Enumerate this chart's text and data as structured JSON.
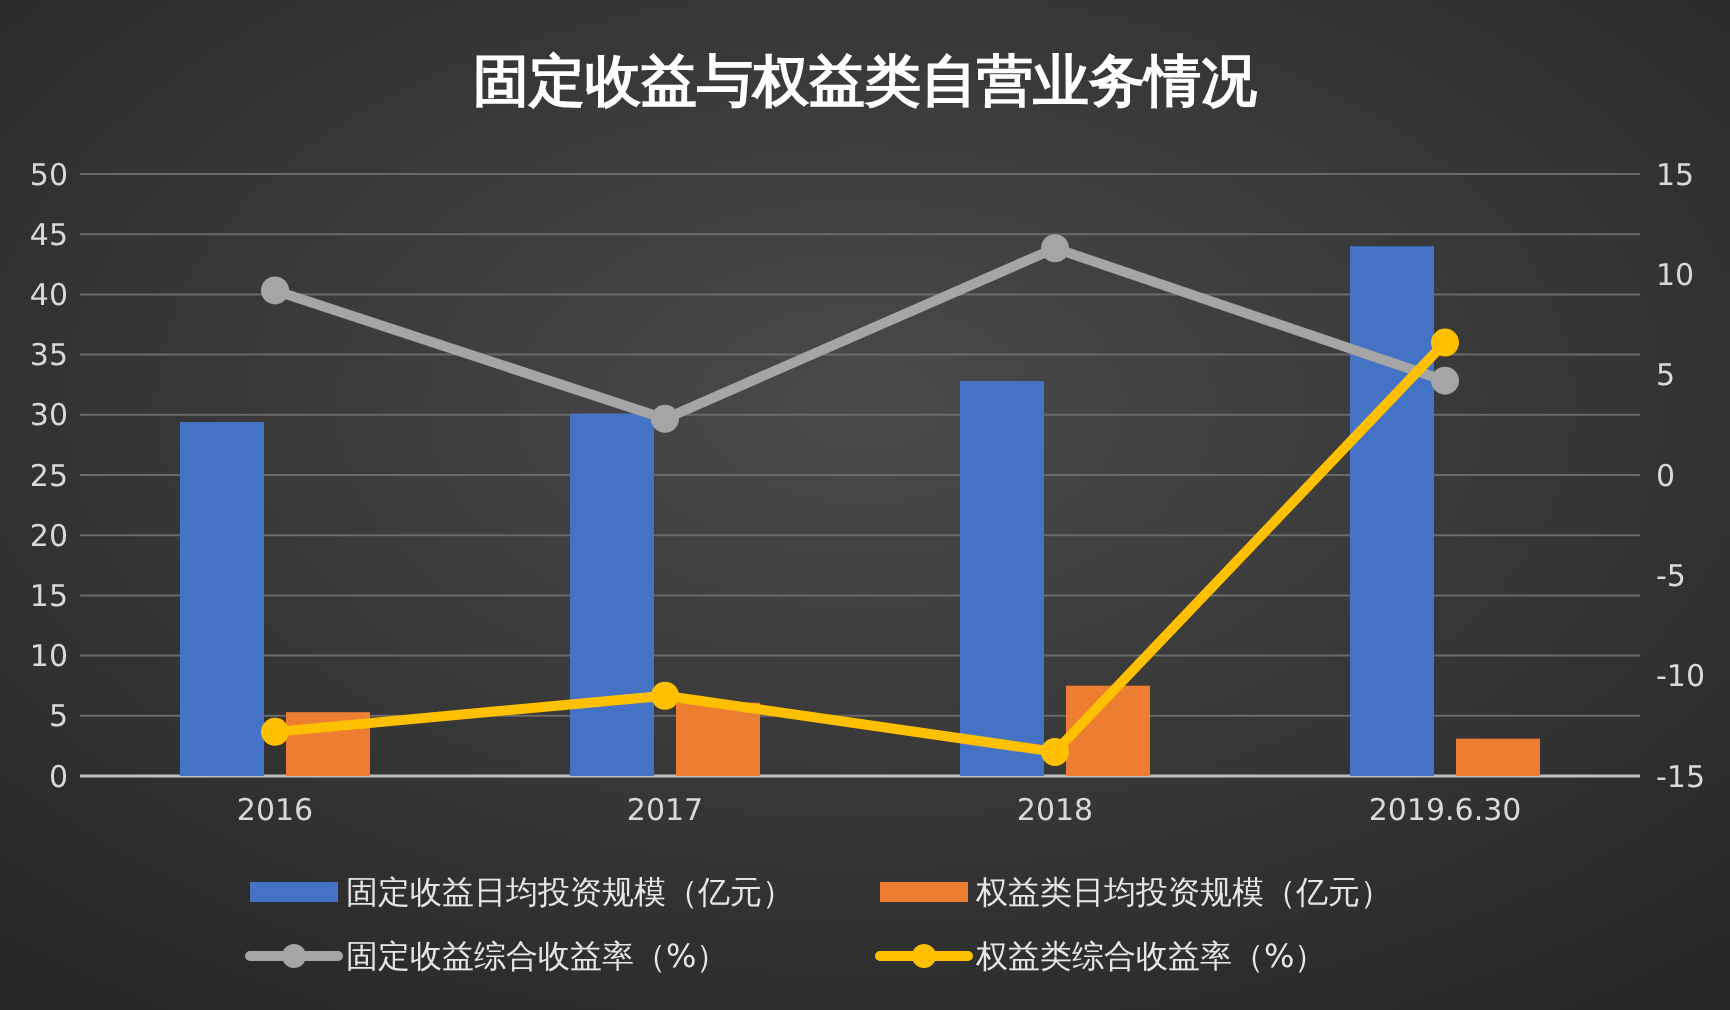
{
  "chart_data": {
    "type": "bar",
    "title": "固定收益与权益类自营业务情况",
    "categories": [
      "2016",
      "2017",
      "2018",
      "2019.6.30"
    ],
    "series": [
      {
        "name": "固定收益日均投资规模（亿元）",
        "color": "#4472c4",
        "values": [
          29.4,
          30.1,
          32.8,
          44.0
        ]
      },
      {
        "name": "权益类日均投资规模（亿元）",
        "color": "#ed7d31",
        "values": [
          5.3,
          6.1,
          7.5,
          3.1
        ]
      },
      {
        "name": "固定收益综合收益率（%）",
        "type": "line",
        "axis": "y2",
        "color": "#a5a5a5",
        "values": [
          9.2,
          2.8,
          11.3,
          4.7
        ]
      },
      {
        "name": "权益类综合收益率（%）",
        "type": "line",
        "axis": "y2",
        "color": "#ffc000",
        "values": [
          -12.8,
          -11.0,
          -13.8,
          6.6
        ]
      }
    ],
    "ylim": [
      0,
      50
    ],
    "yticks": [
      0,
      5,
      10,
      15,
      20,
      25,
      30,
      35,
      40,
      45,
      50
    ],
    "y2lim": [
      -15,
      15
    ],
    "y2ticks": [
      -15,
      -10,
      -5,
      0,
      5,
      10,
      15
    ],
    "grid": "y",
    "legend": "bottom",
    "marker": "circle"
  }
}
